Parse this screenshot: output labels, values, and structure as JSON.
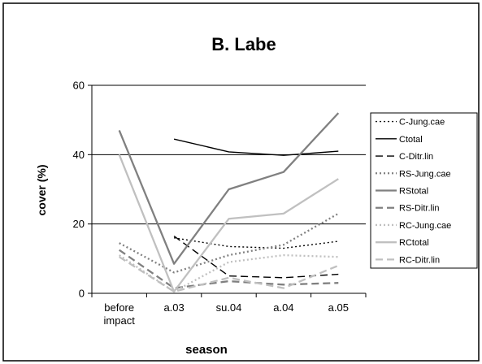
{
  "chart_data": {
    "type": "line",
    "title": "B. Labe",
    "xlabel": "season",
    "ylabel": "cover (%)",
    "categories": [
      "before impact",
      "a.03",
      "su.04",
      "a.04",
      "a.05"
    ],
    "ylim": [
      0,
      60
    ],
    "yticks": [
      0,
      20,
      40,
      60
    ],
    "grid": "horizontal at 20, 40, 60",
    "legend_position": "right",
    "series": [
      {
        "name": "C-Jung.cae",
        "values": [
          null,
          16,
          13.5,
          13,
          15
        ],
        "color": "#000000",
        "dash": "dot"
      },
      {
        "name": "Ctotal",
        "values": [
          null,
          44.5,
          40.8,
          39.8,
          41
        ],
        "color": "#000000",
        "dash": "solid"
      },
      {
        "name": "C-Ditr.lin",
        "values": [
          null,
          16.5,
          5,
          4.5,
          5.5
        ],
        "color": "#000000",
        "dash": "dash"
      },
      {
        "name": "RS-Jung.cae",
        "values": [
          14.5,
          6,
          11,
          14,
          23
        ],
        "color": "#808080",
        "dash": "dot"
      },
      {
        "name": "RStotal",
        "values": [
          47,
          8.5,
          30,
          35,
          52
        ],
        "color": "#808080",
        "dash": "solid"
      },
      {
        "name": "RS-Ditr.lin",
        "values": [
          12.5,
          1.5,
          3.5,
          2.5,
          3
        ],
        "color": "#808080",
        "dash": "dash"
      },
      {
        "name": "RC-Jung.cae",
        "values": [
          11,
          0.5,
          9,
          11,
          10.5
        ],
        "color": "#c0c0c0",
        "dash": "dot"
      },
      {
        "name": "RCtotal",
        "values": [
          40,
          0.5,
          21.5,
          23,
          33
        ],
        "color": "#c0c0c0",
        "dash": "solid"
      },
      {
        "name": "RC-Ditr.lin",
        "values": [
          10.5,
          0.5,
          4.5,
          1.5,
          8
        ],
        "color": "#c0c0c0",
        "dash": "dash"
      }
    ]
  }
}
